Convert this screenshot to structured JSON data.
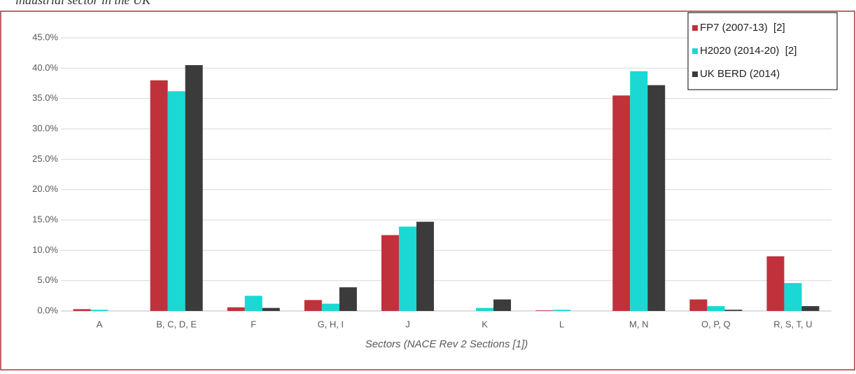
{
  "caption": "industrial sector in the UK",
  "chart_data": {
    "type": "bar",
    "x_label": "Sectors (NACE Rev 2 Sections [1])",
    "categories": [
      "A",
      "B, C, D, E",
      "F",
      "G, H, I",
      "J",
      "K",
      "L",
      "M, N",
      "O, P, Q",
      "R, S, T, U"
    ],
    "series": [
      {
        "name": "FP7 (2007-13)  [2]",
        "color": "#c0313c",
        "values": [
          0.3,
          38.0,
          0.6,
          1.8,
          12.5,
          0,
          0.1,
          35.5,
          1.9,
          9.0
        ]
      },
      {
        "name": "H2020 (2014-20)  [2]",
        "color": "#1ad8d4",
        "values": [
          0.2,
          36.2,
          2.5,
          1.2,
          13.9,
          0.5,
          0.2,
          39.5,
          0.8,
          4.6
        ]
      },
      {
        "name": "UK BERD (2014)",
        "color": "#3b3b3b",
        "values": [
          0,
          40.5,
          0.5,
          3.9,
          14.7,
          1.9,
          0,
          37.2,
          0.2,
          0.8
        ]
      }
    ],
    "ylim": [
      0,
      45
    ],
    "yticks": [
      {
        "value": 0,
        "label": "0.0%"
      },
      {
        "value": 5,
        "label": "5.0%"
      },
      {
        "value": 10,
        "label": "10.0%"
      },
      {
        "value": 15,
        "label": "15.0%"
      },
      {
        "value": 20,
        "label": "20.0%"
      },
      {
        "value": 25,
        "label": "25.0%"
      },
      {
        "value": 30,
        "label": "30.0%"
      },
      {
        "value": 35,
        "label": "35.0%"
      },
      {
        "value": 40,
        "label": "40.0%"
      },
      {
        "value": 45,
        "label": "45.0%"
      }
    ],
    "grid": true,
    "legend": "top-right"
  }
}
